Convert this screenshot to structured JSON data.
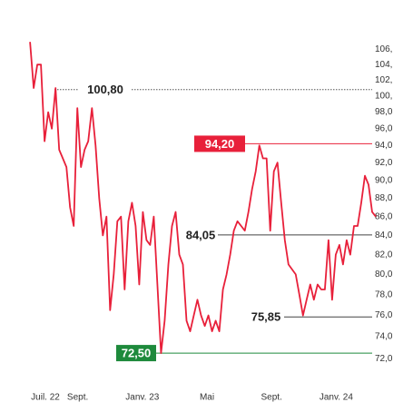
{
  "chart_data": {
    "type": "line",
    "log_scale": true,
    "xlim": [
      -0.95,
      20.45
    ],
    "xticks": [
      {
        "value": 0,
        "label": "Juil. 22"
      },
      {
        "value": 2,
        "label": "Sept."
      },
      {
        "value": 6,
        "label": "Janv. 23"
      },
      {
        "value": 10,
        "label": "Mai"
      },
      {
        "value": 14,
        "label": "Sept."
      },
      {
        "value": 18,
        "label": "Janv. 24"
      }
    ],
    "ylim": [
      70,
      108
    ],
    "yticks": [
      {
        "value": 72,
        "label": "72,0"
      },
      {
        "value": 74,
        "label": "74,0"
      },
      {
        "value": 76,
        "label": "76,0"
      },
      {
        "value": 78,
        "label": "78,0"
      },
      {
        "value": 80,
        "label": "80,0"
      },
      {
        "value": 82,
        "label": "82,0"
      },
      {
        "value": 84,
        "label": "84,0"
      },
      {
        "value": 86,
        "label": "86,0"
      },
      {
        "value": 88,
        "label": "88,0"
      },
      {
        "value": 90,
        "label": "90,0"
      },
      {
        "value": 92,
        "label": "92,0"
      },
      {
        "value": 94,
        "label": "94,0"
      },
      {
        "value": 96,
        "label": "96,0"
      },
      {
        "value": 98,
        "label": "98,0"
      },
      {
        "value": 100,
        "label": "100,"
      },
      {
        "value": 102,
        "label": "102,"
      },
      {
        "value": 104,
        "label": "104,"
      },
      {
        "value": 106,
        "label": "106,"
      }
    ],
    "color": "#e8203a",
    "values": [
      107,
      101,
      104,
      104,
      94.5,
      98,
      96,
      101,
      93.5,
      92.5,
      91.5,
      87,
      85,
      98.5,
      91.5,
      93.5,
      94.5,
      98.5,
      94,
      88,
      84,
      86,
      76.5,
      80,
      85.5,
      86,
      78.5,
      85.5,
      87.5,
      85,
      79,
      86.5,
      83.5,
      83,
      86,
      79,
      72.5,
      75.5,
      81,
      85,
      86.5,
      82,
      81,
      75.5,
      74.5,
      76,
      77.5,
      76,
      75,
      76,
      74.5,
      75.5,
      74.5,
      78.5,
      80,
      82,
      84.5,
      85.5,
      85,
      84.5,
      86.5,
      89,
      91,
      94,
      92.5,
      92.5,
      84.5,
      91,
      92,
      87.5,
      83.5,
      81,
      80.5,
      80,
      78,
      76,
      77.5,
      79,
      77.5,
      79,
      78.5,
      78.5,
      83.5,
      77.5,
      82,
      83,
      81,
      83.5,
      82,
      85,
      85,
      87.5,
      90.5,
      89.5,
      86.5,
      86
    ],
    "annotations": [
      {
        "value": 100.8,
        "label": "100,80",
        "color": "#555555",
        "style": "dotted"
      },
      {
        "value": 94.2,
        "label": "94,20",
        "color": "#e8203a",
        "style": "box"
      },
      {
        "value": 84.05,
        "label": "84,05",
        "color": "#444444",
        "style": "plain"
      },
      {
        "value": 75.85,
        "label": "75,85",
        "color": "#444444",
        "style": "plain"
      },
      {
        "value": 72.5,
        "label": "72,50",
        "color": "#1e8a3c",
        "style": "box"
      }
    ]
  }
}
